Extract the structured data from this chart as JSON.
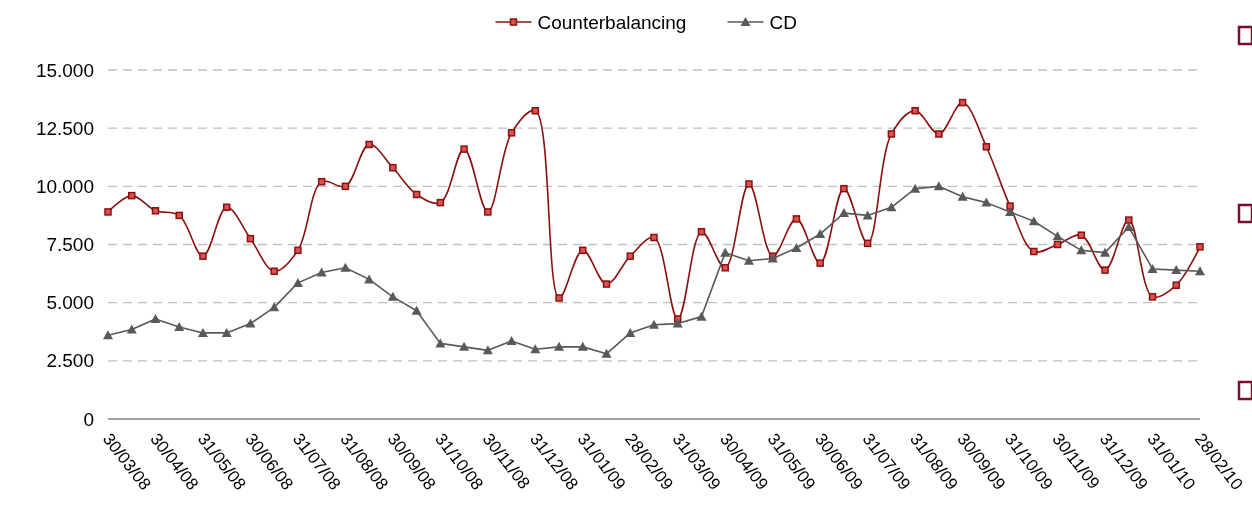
{
  "chart_data": {
    "type": "line",
    "categories": [
      "30/03/08",
      null,
      "30/04/08",
      null,
      "31/05/08",
      null,
      "30/06/08",
      null,
      "31/07/08",
      null,
      "31/08/08",
      null,
      "30/09/08",
      null,
      "31/10/08",
      null,
      "30/11/08",
      null,
      "31/12/08",
      null,
      "31/01/09",
      null,
      "28/02/09",
      null,
      "31/03/09",
      null,
      "30/04/09",
      null,
      "31/05/09",
      null,
      "30/06/09",
      null,
      "31/07/09",
      null,
      "31/08/09",
      null,
      "30/09/09",
      null,
      "31/10/09",
      null,
      "30/11/09",
      null,
      "31/12/09",
      null,
      "31/01/10",
      null,
      "28/02/10"
    ],
    "series": [
      {
        "name": "Counterbalancing",
        "color": "#8b1010",
        "marker": "square",
        "values": [
          8900,
          9600,
          8950,
          8750,
          7000,
          9100,
          7750,
          6350,
          7250,
          10200,
          10000,
          11800,
          10800,
          9650,
          9300,
          11600,
          8900,
          12300,
          13250,
          5200,
          7250,
          5800,
          7000,
          7800,
          4300,
          8050,
          6500,
          10100,
          7000,
          8600,
          6700,
          9900,
          7550,
          12250,
          13250,
          12250,
          13600,
          11700,
          9150,
          7200,
          7500,
          7900,
          6400,
          8550,
          5250,
          5750,
          7400
        ]
      },
      {
        "name": "CD",
        "color": "#595959",
        "marker": "triangle",
        "values": [
          3600,
          3850,
          4300,
          3950,
          3700,
          3700,
          4100,
          4800,
          5850,
          6300,
          6500,
          6000,
          5250,
          4650,
          3250,
          3100,
          2950,
          3350,
          3000,
          3100,
          3100,
          2800,
          3700,
          4050,
          4100,
          4400,
          7150,
          6800,
          6900,
          7350,
          7950,
          8850,
          8750,
          9100,
          9900,
          10000,
          9550,
          9300,
          8900,
          8500,
          7850,
          7250,
          7150,
          8250,
          6450,
          6400,
          6350
        ]
      }
    ],
    "ylim": [
      0,
      15000
    ],
    "yticks": [
      0,
      {
        "value": 2500,
        "label": "2.500"
      },
      {
        "value": 5000,
        "label": "5.000"
      },
      {
        "value": 7500,
        "label": "7.500"
      },
      {
        "value": 10000,
        "label": "10.000"
      },
      {
        "value": 12500,
        "label": "12.500"
      },
      {
        "value": 15000,
        "label": "15.000"
      }
    ],
    "grid": "y",
    "legend": "top"
  }
}
